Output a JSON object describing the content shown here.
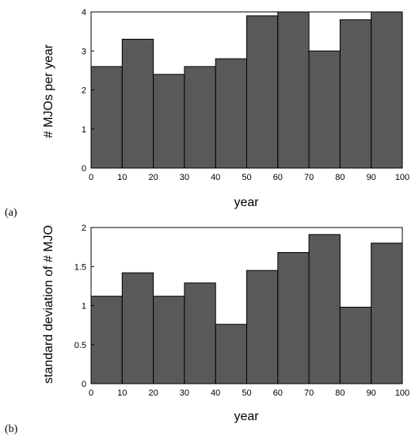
{
  "chart_data": [
    {
      "type": "bar",
      "panel_label": "(a)",
      "xlabel": "year",
      "ylabel": "# MJOs per year",
      "xlim": [
        0,
        100
      ],
      "ylim": [
        0,
        4
      ],
      "xticks": [
        "0",
        "10",
        "20",
        "30",
        "40",
        "50",
        "60",
        "70",
        "80",
        "90",
        "100"
      ],
      "yticks": [
        "0",
        "1",
        "2",
        "3",
        "4"
      ],
      "bins": [
        [
          0,
          10
        ],
        [
          10,
          20
        ],
        [
          20,
          30
        ],
        [
          30,
          40
        ],
        [
          40,
          50
        ],
        [
          50,
          60
        ],
        [
          60,
          70
        ],
        [
          70,
          80
        ],
        [
          80,
          90
        ],
        [
          90,
          100
        ]
      ],
      "values": [
        2.6,
        3.3,
        2.4,
        2.6,
        2.8,
        3.9,
        4.0,
        3.0,
        3.8,
        4.0
      ],
      "bar_color": "#595959",
      "grid": false
    },
    {
      "type": "bar",
      "panel_label": "(b)",
      "xlabel": "year",
      "ylabel": "standard deviation of # MJOs",
      "xlim": [
        0,
        100
      ],
      "ylim": [
        0,
        2
      ],
      "xticks": [
        "0",
        "10",
        "20",
        "30",
        "40",
        "50",
        "60",
        "70",
        "80",
        "90",
        "100"
      ],
      "yticks": [
        "0",
        "0.5",
        "1",
        "1.5",
        "2"
      ],
      "bins": [
        [
          0,
          10
        ],
        [
          10,
          20
        ],
        [
          20,
          30
        ],
        [
          30,
          40
        ],
        [
          40,
          50
        ],
        [
          50,
          60
        ],
        [
          60,
          70
        ],
        [
          70,
          80
        ],
        [
          80,
          90
        ],
        [
          90,
          100
        ]
      ],
      "values": [
        1.12,
        1.42,
        1.12,
        1.29,
        0.76,
        1.45,
        1.68,
        1.91,
        0.98,
        1.8
      ],
      "bar_color": "#595959",
      "grid": false
    }
  ]
}
